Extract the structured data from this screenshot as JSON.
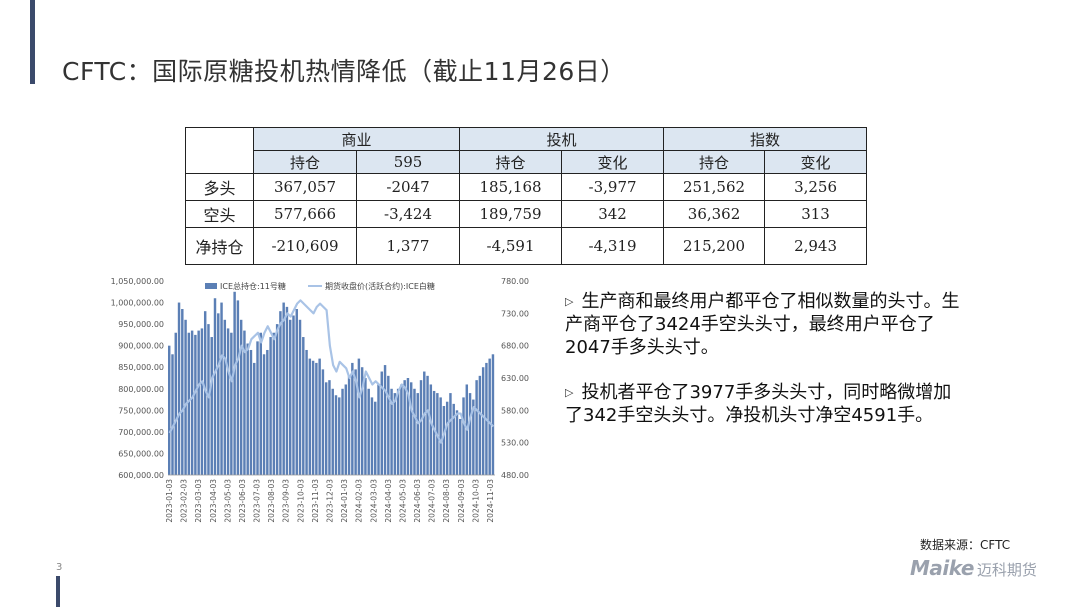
{
  "title": "CFTC：国际原糖投机热情降低（截止11月26日）",
  "table": {
    "groups": [
      "商业",
      "投机",
      "指数"
    ],
    "subheaders": [
      "持仓",
      "595",
      "持仓",
      "变化",
      "持仓",
      "变化"
    ],
    "rows": [
      {
        "label": "多头",
        "cells": [
          "367,057",
          "-2047",
          "185,168",
          "-3,977",
          "251,562",
          "3,256"
        ]
      },
      {
        "label": "空头",
        "cells": [
          "577,666",
          "-3,424",
          "189,759",
          "342",
          "36,362",
          "313"
        ]
      },
      {
        "label": "净持仓",
        "cells": [
          "-210,609",
          "1,377",
          "-4,591",
          "-4,319",
          "215,200",
          "2,943"
        ]
      }
    ]
  },
  "chart_data": {
    "type": "bar+line",
    "legend": [
      "ICE总持仓:11号糖",
      "期货收盘价(活跃合约):ICE白糖"
    ],
    "legend_position": "top",
    "y_left": {
      "min": 600000,
      "max": 1050000,
      "ticks": [
        "600,000.00",
        "650,000.00",
        "700,000.00",
        "750,000.00",
        "800,000.00",
        "850,000.00",
        "900,000.00",
        "950,000.00",
        "1,000,000.00",
        "1,050,000.00"
      ]
    },
    "y_right": {
      "min": 480,
      "max": 780,
      "ticks": [
        "480.00",
        "530.00",
        "580.00",
        "630.00",
        "680.00",
        "730.00",
        "780.00"
      ]
    },
    "x_ticks": [
      "2023-01-03",
      "2023-02-03",
      "2023-03-03",
      "2023-04-03",
      "2023-05-03",
      "2023-06-03",
      "2023-07-03",
      "2023-08-03",
      "2023-09-03",
      "2023-10-03",
      "2023-11-03",
      "2023-12-03",
      "2024-01-03",
      "2024-02-03",
      "2024-03-03",
      "2024-04-03",
      "2024-05-03",
      "2024-06-03",
      "2024-07-03",
      "2024-08-03",
      "2024-09-03",
      "2024-10-03",
      "2024-11-03"
    ],
    "open_interest": [
      900000,
      880000,
      930000,
      1000000,
      985000,
      960000,
      930000,
      935000,
      925000,
      935000,
      940000,
      980000,
      950000,
      920000,
      1010000,
      975000,
      1000000,
      960000,
      940000,
      930000,
      1025000,
      1005000,
      960000,
      935000,
      905000,
      890000,
      860000,
      910000,
      930000,
      880000,
      890000,
      920000,
      930000,
      950000,
      980000,
      1000000,
      990000,
      960000,
      970000,
      985000,
      960000,
      920000,
      890000,
      870000,
      865000,
      860000,
      870000,
      845000,
      815000,
      820000,
      800000,
      785000,
      780000,
      800000,
      810000,
      830000,
      860000,
      845000,
      870000,
      850000,
      825000,
      800000,
      780000,
      770000,
      810000,
      840000,
      855000,
      830000,
      800000,
      790000,
      800000,
      810000,
      820000,
      825000,
      815000,
      800000,
      790000,
      820000,
      840000,
      830000,
      810000,
      795000,
      790000,
      780000,
      760000,
      770000,
      790000,
      765000,
      750000,
      730000,
      780000,
      810000,
      790000,
      775000,
      820000,
      830000,
      850000,
      860000,
      870000,
      880000
    ],
    "price": [
      545,
      555,
      565,
      575,
      580,
      590,
      595,
      600,
      610,
      620,
      625,
      610,
      600,
      630,
      640,
      650,
      665,
      660,
      640,
      625,
      650,
      660,
      680,
      670,
      675,
      690,
      695,
      700,
      685,
      700,
      710,
      700,
      690,
      705,
      715,
      720,
      730,
      725,
      735,
      745,
      750,
      745,
      740,
      735,
      730,
      740,
      745,
      740,
      735,
      680,
      650,
      640,
      655,
      650,
      645,
      630,
      640,
      625,
      600,
      615,
      640,
      630,
      620,
      625,
      620,
      615,
      610,
      600,
      590,
      595,
      610,
      620,
      615,
      605,
      580,
      570,
      560,
      565,
      575,
      580,
      560,
      550,
      540,
      530,
      545,
      560,
      565,
      570,
      575,
      575,
      560,
      550,
      570,
      585,
      580,
      575,
      570,
      565,
      560,
      555
    ]
  },
  "bullets": [
    "生产商和最终用户都平仓了相似数量的头寸。生产商平仓了3424手空头头寸，最终用户平仓了2047手多头头寸。",
    "投机者平仓了3977手多头头寸，同时略微增加了342手空头头寸。净投机头寸净空4591手。"
  ],
  "source": "数据来源：CFTC",
  "page_number": "3",
  "logo": {
    "brand": "Maike",
    "text": "迈科期货"
  },
  "colors": {
    "accent": "#3b4a6b",
    "bars": "#5b7fb5",
    "line": "#a9c3e6",
    "table_header": "#dce6f1"
  }
}
